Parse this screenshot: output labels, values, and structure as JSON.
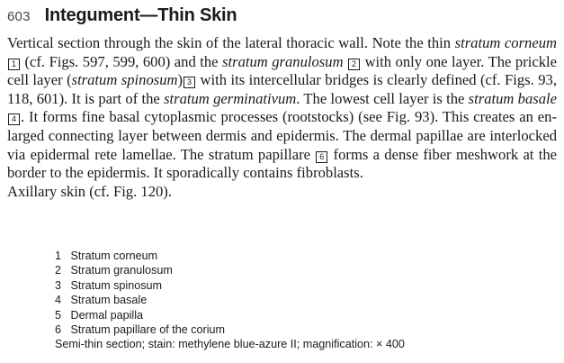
{
  "header": {
    "figure_number": "603",
    "title": "Integument—Thin Skin"
  },
  "description": {
    "t1": "Vertical section through the skin of the lateral thoracic wall. Note the thin ",
    "e1": "stratum corneum",
    "b1": "1",
    "t2": " (cf. Figs. 597, 599, 600) and the ",
    "e2": "stratum granulosum",
    "b2": "2",
    "t3": " with only one layer. The prickle cell layer (",
    "e3": "stratum spinosum",
    "t3b": ")",
    "b3": "3",
    "t4": " with its inter­cellular bridges is clearly defined (cf. Figs. 93, 118, 601). It is part of the ",
    "e4": "stra­tum germinativum",
    "t5": ". The lowest cell layer is the ",
    "e5": "stratum basale",
    "b4": "4",
    "t6": ". It forms fine basal cytoplasmic processes (rootstocks) (see Fig. 93). This creates an en­larged connecting layer between dermis and epidermis. The dermal papillae are interlocked via epidermal rete lamellae. The stratum papillare ",
    "b6": "6",
    "t7": " forms a dense fiber meshwork at the border to the epidermis. It sporadically contains fibroblasts.",
    "axillary": "Axillary skin (cf. Fig. 120)."
  },
  "legend": {
    "items": [
      {
        "num": "1",
        "label": "Stratum corneum"
      },
      {
        "num": "2",
        "label": "Stratum granulosum"
      },
      {
        "num": "3",
        "label": "Stratum spinosum"
      },
      {
        "num": "4",
        "label": "Stratum basale"
      },
      {
        "num": "5",
        "label": "Dermal papilla"
      },
      {
        "num": "6",
        "label": "Stratum papillare of the corium"
      }
    ],
    "caption": "Semi-thin section; stain: methylene blue-azure II; magnification: × 400"
  }
}
